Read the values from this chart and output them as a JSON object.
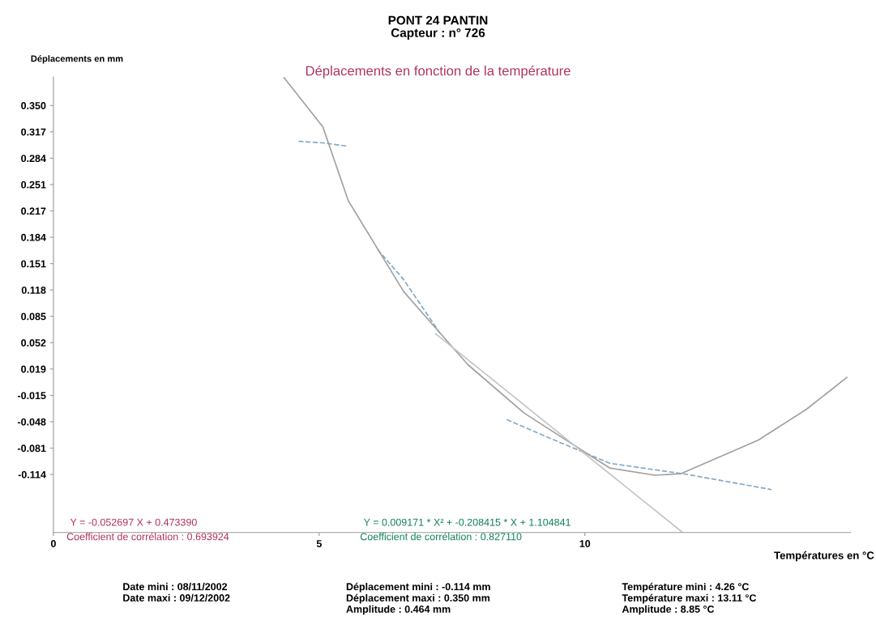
{
  "chart_data": {
    "type": "line",
    "title": "PONT 24 PANTIN\nCapteur : n° 726",
    "subtitle": "Déplacements en fonction de la température",
    "xlabel": "Températures en °C",
    "ylabel": "Déplacements en mm",
    "xlim": [
      0,
      15
    ],
    "xticks": [
      0,
      5,
      10
    ],
    "ylim": [
      -0.187,
      0.386
    ],
    "yticks": [
      {
        "value": 0.35,
        "label": "0.350"
      },
      {
        "value": 0.3169,
        "label": "0.317"
      },
      {
        "value": 0.2837,
        "label": "0.284"
      },
      {
        "value": 0.2506,
        "label": "0.251"
      },
      {
        "value": 0.2174,
        "label": "0.217"
      },
      {
        "value": 0.1843,
        "label": "0.184"
      },
      {
        "value": 0.1511,
        "label": "0.151"
      },
      {
        "value": 0.118,
        "label": "0.118"
      },
      {
        "value": 0.0849,
        "label": "0.085"
      },
      {
        "value": 0.0517,
        "label": "0.052"
      },
      {
        "value": 0.0186,
        "label": "0.019"
      },
      {
        "value": -0.0146,
        "label": "-0.015"
      },
      {
        "value": -0.0477,
        "label": "-0.048"
      },
      {
        "value": -0.0809,
        "label": "-0.081"
      },
      {
        "value": -0.114,
        "label": "-0.114"
      }
    ],
    "grid": false,
    "legend": false,
    "series": [
      {
        "color": "#7fa8c8",
        "line_style": "dashed",
        "x": [
          4.61,
          5.07,
          5.52,
          5.8,
          6.1,
          6.59,
          7.28,
          7.9,
          8.53,
          9.47,
          10.47,
          11.93,
          13.51
        ],
        "values": [
          0.305,
          0.303,
          0.299,
          null,
          0.169,
          0.131,
          0.063,
          null,
          -0.045,
          -0.072,
          -0.1,
          -0.114,
          -0.133
        ]
      },
      {
        "color": "#a0a0a0",
        "line_style": "solid",
        "x": [
          4.34,
          5.07,
          5.55,
          6.59,
          7.8,
          8.86,
          10.47,
          11.32,
          11.81,
          13.26,
          14.17,
          14.93
        ],
        "values": [
          0.385,
          0.323,
          0.23,
          0.116,
          0.024,
          -0.037,
          -0.106,
          -0.115,
          -0.113,
          -0.071,
          -0.032,
          0.008
        ]
      },
      {
        "color": "#c4c4c4",
        "line_style": "solid",
        "x": [
          7.19,
          11.84
        ],
        "values": [
          0.063,
          -0.187
        ]
      }
    ],
    "annotations": [
      "Y = -0.052697 X + 0.473390",
      "Coefficient de corrélation : 0.693924",
      "Y = 0.009171 * X² + -0.208415 * X + 1.104841",
      "Coefficient de corrélation : 0.827110",
      "Date mini : 08/11/2002",
      "Date maxi : 09/12/2002",
      "Déplacement mini : -0.114 mm",
      "Déplacement maxi : 0.350 mm",
      "Amplitude : 0.464 mm",
      "Température mini : 4.26 °C",
      "Température maxi : 13.11 °C",
      "Amplitude : 8.85 °C"
    ]
  }
}
